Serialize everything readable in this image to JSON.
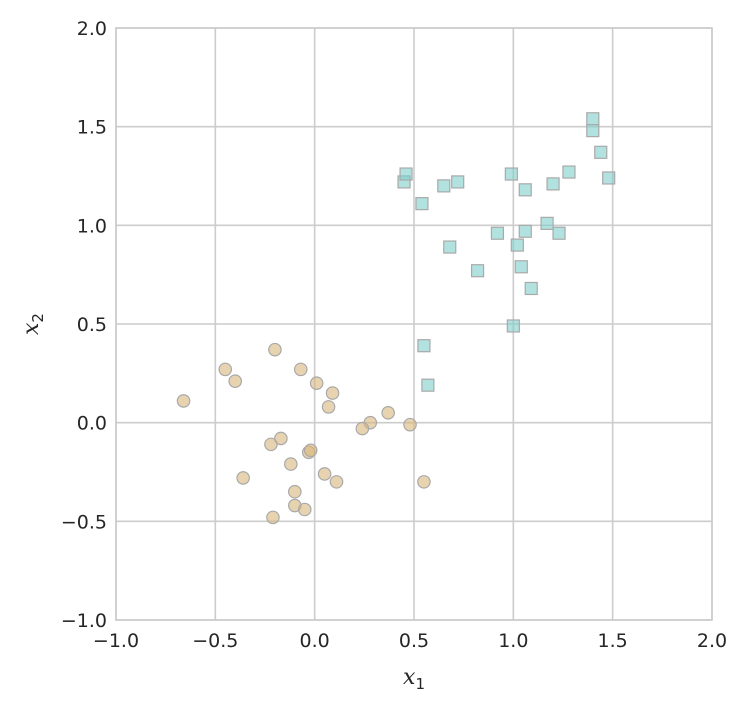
{
  "chart_data": {
    "type": "scatter",
    "title": "",
    "xlabel": {
      "main": "x",
      "sub": "1"
    },
    "ylabel": {
      "main": "x",
      "sub": "2"
    },
    "xlim": [
      -1.0,
      2.0
    ],
    "ylim": [
      -1.0,
      2.0
    ],
    "xticks": [
      -1.0,
      -0.5,
      0.0,
      0.5,
      1.0,
      1.5,
      2.0
    ],
    "yticks": [
      -1.0,
      -0.5,
      0.0,
      0.5,
      1.0,
      1.5,
      2.0
    ],
    "xtick_labels": [
      "−1.0",
      "−0.5",
      "0.0",
      "0.5",
      "1.0",
      "1.5",
      "2.0"
    ],
    "ytick_labels": [
      "−1.0",
      "−0.5",
      "0.0",
      "0.5",
      "1.0",
      "1.5",
      "2.0"
    ],
    "grid": true,
    "colors": {
      "grid": "#cccccc",
      "spine": "#cccccc",
      "background": "#ffffff"
    },
    "series": [
      {
        "marker": "circle",
        "color": "#d9b67c",
        "points": [
          [
            -0.66,
            0.11
          ],
          [
            -0.45,
            0.27
          ],
          [
            -0.4,
            0.21
          ],
          [
            -0.2,
            0.37
          ],
          [
            -0.07,
            0.27
          ],
          [
            0.01,
            0.2
          ],
          [
            0.09,
            0.15
          ],
          [
            0.07,
            0.08
          ],
          [
            0.37,
            0.05
          ],
          [
            0.28,
            0.0
          ],
          [
            0.24,
            -0.03
          ],
          [
            0.48,
            -0.01
          ],
          [
            -0.22,
            -0.11
          ],
          [
            -0.17,
            -0.08
          ],
          [
            -0.03,
            -0.15
          ],
          [
            -0.02,
            -0.14
          ],
          [
            -0.12,
            -0.21
          ],
          [
            0.05,
            -0.26
          ],
          [
            0.11,
            -0.3
          ],
          [
            -0.36,
            -0.28
          ],
          [
            -0.1,
            -0.35
          ],
          [
            -0.1,
            -0.42
          ],
          [
            -0.05,
            -0.44
          ],
          [
            -0.21,
            -0.48
          ],
          [
            0.55,
            -0.3
          ]
        ]
      },
      {
        "marker": "square",
        "color": "#7ececa",
        "points": [
          [
            0.45,
            1.22
          ],
          [
            0.46,
            1.26
          ],
          [
            0.54,
            1.11
          ],
          [
            0.65,
            1.2
          ],
          [
            0.72,
            1.22
          ],
          [
            0.68,
            0.89
          ],
          [
            0.82,
            0.77
          ],
          [
            0.92,
            0.96
          ],
          [
            0.99,
            1.26
          ],
          [
            1.06,
            1.18
          ],
          [
            1.2,
            1.21
          ],
          [
            1.28,
            1.27
          ],
          [
            1.4,
            1.54
          ],
          [
            1.4,
            1.48
          ],
          [
            1.44,
            1.37
          ],
          [
            1.48,
            1.24
          ],
          [
            1.17,
            1.01
          ],
          [
            1.23,
            0.96
          ],
          [
            1.06,
            0.97
          ],
          [
            1.02,
            0.9
          ],
          [
            1.04,
            0.79
          ],
          [
            1.09,
            0.68
          ],
          [
            1.0,
            0.49
          ],
          [
            0.55,
            0.39
          ],
          [
            0.57,
            0.19
          ]
        ]
      }
    ]
  }
}
